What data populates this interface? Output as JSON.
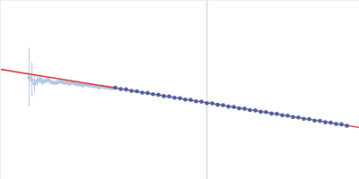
{
  "chart_data": {
    "type": "scatter",
    "xlim": [
      0,
      400
    ],
    "ylim": [
      0,
      200
    ],
    "tick_labels": false,
    "grid": false,
    "series": [
      {
        "type": "line",
        "color": "#c9d5ea",
        "x": [
          230,
          230
        ],
        "values": [
          0,
          200
        ]
      },
      {
        "type": "scatter",
        "marker": "dot",
        "color": "#b3c6e4",
        "x": [
          32,
          35,
          38,
          41,
          44,
          47,
          50,
          53,
          56,
          59,
          62,
          65,
          68,
          71,
          74,
          77,
          80,
          83,
          86,
          89,
          92,
          95,
          98,
          101,
          104,
          107,
          110,
          113,
          116,
          119,
          122,
          125
        ],
        "values": [
          114,
          111,
          107,
          110,
          112,
          109,
          110,
          111,
          109,
          108,
          108,
          109,
          109,
          108,
          108,
          107,
          108,
          107,
          106,
          106,
          105,
          106,
          105,
          105,
          104,
          104,
          103,
          104,
          103,
          103,
          102,
          102
        ],
        "errors": [
          33,
          19,
          10,
          6,
          5,
          4,
          3,
          3,
          2,
          2,
          2,
          2,
          2,
          2,
          2,
          2,
          2,
          2,
          2,
          2,
          1,
          1,
          1,
          1,
          1,
          1,
          1,
          1,
          1,
          1,
          1,
          1
        ]
      },
      {
        "type": "line",
        "color": "#d62728",
        "x": [
          0,
          400
        ],
        "values": [
          123,
          58
        ]
      },
      {
        "type": "scatter",
        "marker": "dot",
        "color": "#3b5ea6",
        "x": [
          128,
          134,
          140,
          146,
          152,
          158,
          164,
          170,
          176,
          182,
          188,
          194,
          200,
          206,
          212,
          218,
          224,
          230,
          236,
          242,
          248,
          254,
          260,
          266,
          272,
          278,
          284,
          290,
          296,
          302,
          308,
          314,
          320,
          326,
          332,
          338,
          344,
          350,
          356,
          362,
          368,
          374,
          380,
          386
        ],
        "values": [
          102.5,
          101.0,
          100.6,
          99.0,
          98.5,
          97.0,
          96.6,
          95.2,
          94.6,
          93.1,
          92.7,
          91.3,
          90.8,
          89.2,
          88.9,
          87.3,
          86.9,
          85.3,
          85.0,
          83.4,
          83.0,
          81.4,
          81.0,
          79.5,
          79.1,
          77.5,
          77.1,
          75.6,
          75.2,
          73.6,
          73.2,
          71.7,
          71.3,
          69.7,
          69.3,
          67.8,
          67.4,
          65.8,
          65.4,
          63.9,
          63.5,
          62.0,
          61.6,
          60.0
        ]
      }
    ]
  }
}
